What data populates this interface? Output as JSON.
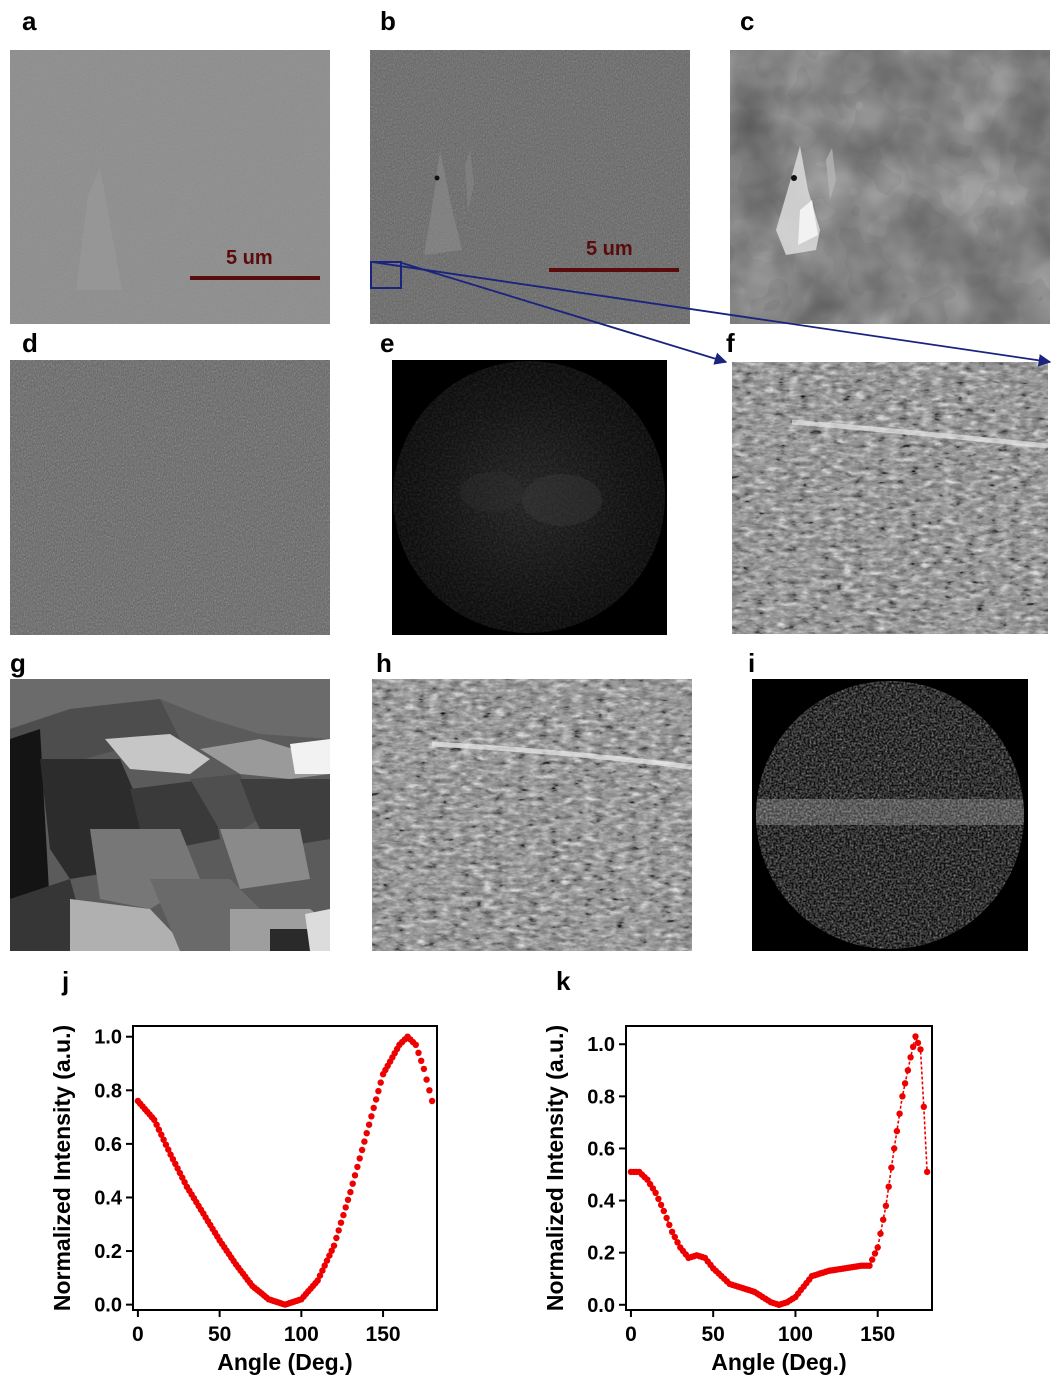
{
  "panels": {
    "a": "a",
    "b": "b",
    "c": "c",
    "d": "d",
    "e": "e",
    "f": "f",
    "g": "g",
    "h": "h",
    "i": "i",
    "j": "j",
    "k": "k"
  },
  "scale_bar_label": "5 um",
  "colors": {
    "series": "#ee0000",
    "scale_bar": "#5a0b0b",
    "inset_box": "#1a237e"
  },
  "chart_data": [
    {
      "panel": "j",
      "type": "scatter",
      "xlabel": "Angle (Deg.)",
      "ylabel": "Normalized Intensity (a.u.)",
      "xlim": [
        -3,
        183
      ],
      "ylim": [
        -0.02,
        1.04
      ],
      "xticks": [
        0,
        50,
        100,
        150
      ],
      "yticks": [
        0.0,
        0.2,
        0.4,
        0.6,
        0.8,
        1.0
      ],
      "ytick_labels": [
        "0.0",
        "0.2",
        "0.4",
        "0.6",
        "0.8",
        "1.0"
      ],
      "x": [
        0,
        10,
        20,
        30,
        40,
        50,
        60,
        70,
        80,
        90,
        100,
        110,
        120,
        130,
        140,
        150,
        160,
        165,
        170,
        175,
        180
      ],
      "y": [
        0.76,
        0.69,
        0.56,
        0.44,
        0.34,
        0.24,
        0.15,
        0.07,
        0.02,
        0.0,
        0.02,
        0.09,
        0.22,
        0.42,
        0.64,
        0.86,
        0.97,
        1.0,
        0.97,
        0.88,
        0.76
      ],
      "connected": false
    },
    {
      "panel": "k",
      "type": "scatter",
      "xlabel": "Angle (Deg.)",
      "ylabel": "Normalized Intensity (a.u.)",
      "xlim": [
        -3,
        183
      ],
      "ylim": [
        -0.02,
        1.07
      ],
      "xticks": [
        0,
        50,
        100,
        150
      ],
      "yticks": [
        0.0,
        0.2,
        0.4,
        0.6,
        0.8,
        1.0
      ],
      "ytick_labels": [
        "0.0",
        "0.2",
        "0.4",
        "0.6",
        "0.8",
        "1.0"
      ],
      "x": [
        0,
        5,
        10,
        15,
        20,
        25,
        30,
        35,
        40,
        45,
        50,
        55,
        60,
        65,
        70,
        75,
        80,
        85,
        90,
        95,
        100,
        105,
        110,
        115,
        120,
        130,
        140,
        145,
        150,
        155,
        160,
        165,
        170,
        173,
        176,
        178,
        180
      ],
      "y": [
        0.51,
        0.51,
        0.48,
        0.43,
        0.36,
        0.28,
        0.22,
        0.18,
        0.19,
        0.18,
        0.14,
        0.11,
        0.08,
        0.07,
        0.06,
        0.05,
        0.03,
        0.01,
        0.0,
        0.01,
        0.03,
        0.07,
        0.11,
        0.12,
        0.13,
        0.14,
        0.15,
        0.15,
        0.22,
        0.38,
        0.6,
        0.8,
        0.95,
        1.03,
        0.98,
        0.76,
        0.51
      ],
      "connected": true
    }
  ]
}
